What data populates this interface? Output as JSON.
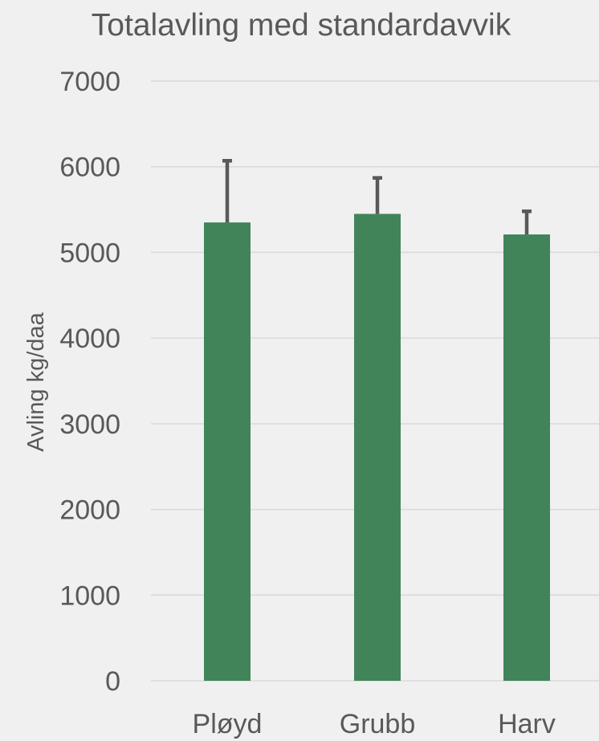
{
  "chart_data": {
    "type": "bar",
    "title": "Totalavling med standardavvik",
    "xlabel": "",
    "ylabel": "Avling kg/daa",
    "categories": [
      "Pløyd",
      "Grubb",
      "Harv"
    ],
    "values": [
      5350,
      5450,
      5210
    ],
    "error_plus": [
      720,
      420,
      270
    ],
    "ylim": [
      0,
      7000
    ],
    "yticks": [
      0,
      1000,
      2000,
      3000,
      4000,
      5000,
      6000,
      7000
    ],
    "grid": true,
    "legend": "none",
    "colors": {
      "bar": "#41845a",
      "error_bar": "#595959",
      "grid": "#d9d9d9",
      "text": "#595959",
      "background": "#f0f0f0"
    }
  }
}
